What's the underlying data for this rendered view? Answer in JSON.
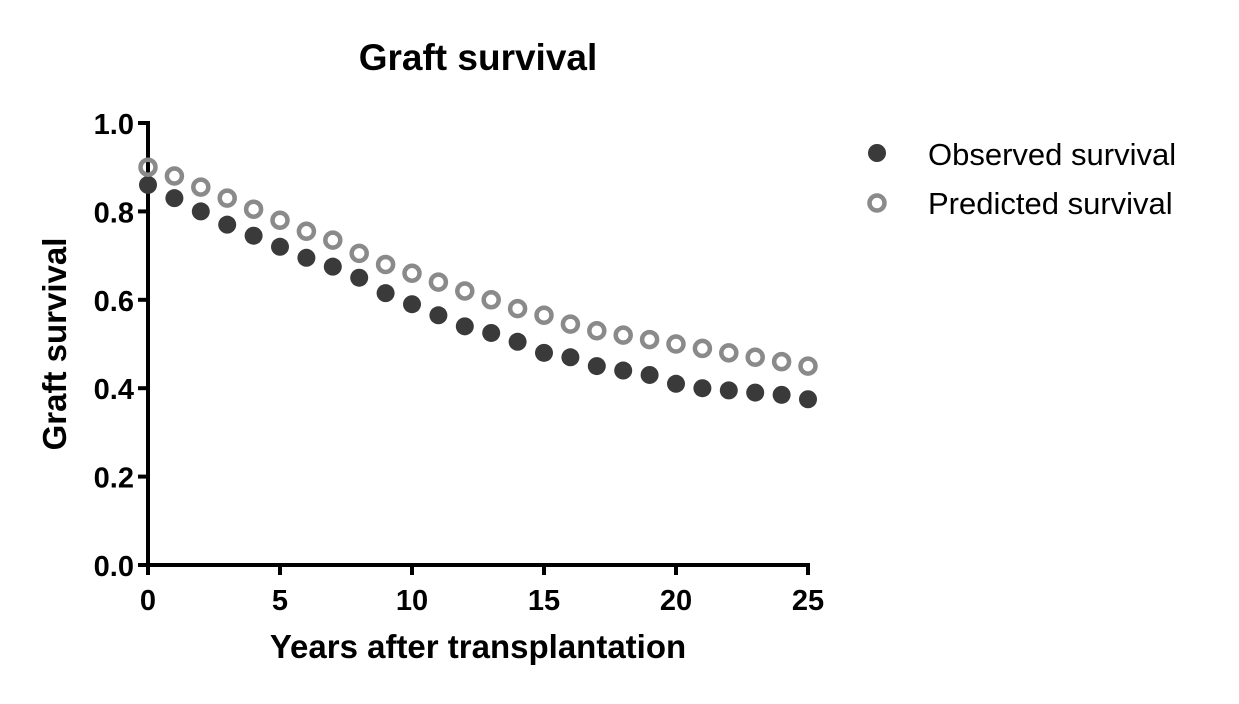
{
  "chart_data": {
    "type": "scatter",
    "title": "Graft survival",
    "xlabel": "Years after transplantation",
    "ylabel": "Graft survival",
    "xlim": [
      0,
      25
    ],
    "ylim": [
      0,
      1.0
    ],
    "xticks": [
      "0",
      "5",
      "10",
      "15",
      "20",
      "25"
    ],
    "xtick_values": [
      0,
      5,
      10,
      15,
      20,
      25
    ],
    "yticks": [
      "0.0",
      "0.2",
      "0.4",
      "0.6",
      "0.8",
      "1.0"
    ],
    "ytick_values": [
      0,
      0.2,
      0.4,
      0.6,
      0.8,
      1.0
    ],
    "grid": false,
    "legend_position": "right",
    "x": [
      0,
      1,
      2,
      3,
      4,
      5,
      6,
      7,
      8,
      9,
      10,
      11,
      12,
      13,
      14,
      15,
      16,
      17,
      18,
      19,
      20,
      21,
      22,
      23,
      24,
      25
    ],
    "series": [
      {
        "name": "Observed survival",
        "marker": "filled-circle",
        "color": "#3a3a3a",
        "values": [
          0.86,
          0.83,
          0.8,
          0.77,
          0.745,
          0.72,
          0.695,
          0.675,
          0.65,
          0.615,
          0.59,
          0.565,
          0.54,
          0.525,
          0.505,
          0.48,
          0.47,
          0.45,
          0.44,
          0.43,
          0.41,
          0.4,
          0.395,
          0.39,
          0.385,
          0.375
        ]
      },
      {
        "name": "Predicted survival",
        "marker": "open-circle",
        "color": "#8a8a8a",
        "values": [
          0.9,
          0.88,
          0.855,
          0.83,
          0.805,
          0.78,
          0.755,
          0.735,
          0.705,
          0.68,
          0.66,
          0.64,
          0.62,
          0.6,
          0.58,
          0.565,
          0.545,
          0.53,
          0.52,
          0.51,
          0.5,
          0.49,
          0.48,
          0.47,
          0.46,
          0.45
        ]
      }
    ]
  }
}
